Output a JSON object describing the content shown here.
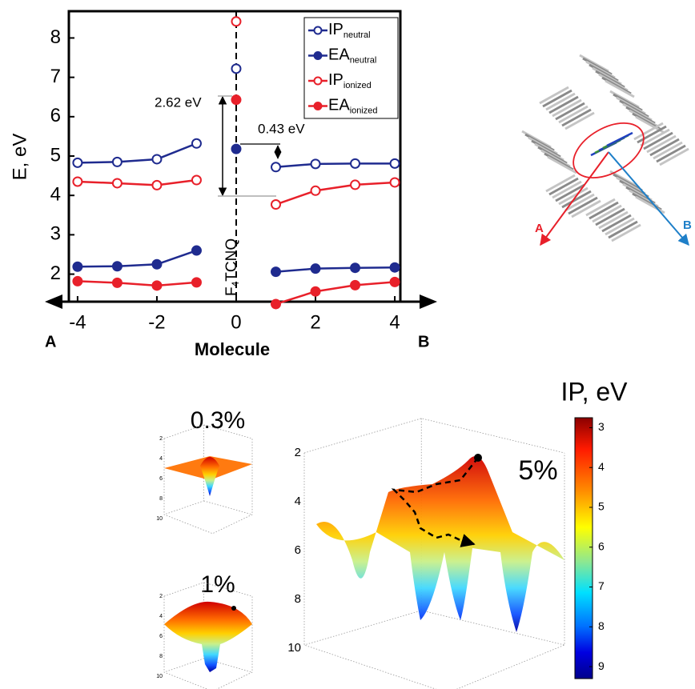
{
  "chart_data": [
    {
      "type": "line",
      "x": [
        -4,
        -3,
        -2,
        -1,
        0,
        1,
        2,
        3,
        4
      ],
      "xlim": [
        -4.22,
        4.14
      ],
      "ylim": [
        1.3,
        8.68
      ],
      "xticks": [
        -4,
        -2,
        0,
        2,
        4
      ],
      "yticks": [
        2,
        3,
        4,
        5,
        6,
        7,
        8
      ],
      "x_label": "Molecule",
      "y_label": "E, eV",
      "end_labels": [
        "A",
        "B"
      ],
      "annotations": [
        "2.62 eV",
        "0.43 eV"
      ],
      "center_label": "F",
      "center_label_subscript": "4",
      "center_label_rest": "TCNQ",
      "legend": "upper right",
      "series": [
        {
          "name": "IP",
          "subscript": "neutral",
          "color": "#1f2b8f",
          "marker": "open",
          "values": [
            4.83,
            4.85,
            4.92,
            5.32,
            7.22,
            4.72,
            4.8,
            4.81,
            4.81
          ]
        },
        {
          "name": "EA",
          "subscript": "neutral",
          "color": "#1f2b8f",
          "marker": "filled",
          "values": [
            2.19,
            2.2,
            2.25,
            2.6,
            5.18,
            2.06,
            2.14,
            2.16,
            2.17
          ]
        },
        {
          "name": "IP",
          "subscript": "ionized",
          "color": "#e8202a",
          "marker": "open",
          "values": [
            4.35,
            4.31,
            4.26,
            4.39,
            8.42,
            3.77,
            4.12,
            4.27,
            4.33
          ]
        },
        {
          "name": "EA",
          "subscript": "ionized",
          "color": "#e8202a",
          "marker": "filled",
          "values": [
            1.82,
            1.78,
            1.71,
            1.79,
            6.43,
            1.24,
            1.56,
            1.72,
            1.8
          ]
        }
      ]
    },
    {
      "type": "colorbar",
      "title": "IP, eV",
      "ylim": [
        2.75,
        9.3
      ],
      "yticks": [
        3,
        4,
        5,
        6,
        7,
        8,
        9
      ]
    }
  ],
  "diagram": {
    "arrow_labels": [
      "A",
      "B"
    ]
  },
  "surfaces": [
    {
      "label": "0.3%",
      "zticks": [
        2,
        4,
        6,
        8,
        10
      ]
    },
    {
      "label": "1%",
      "zticks": [
        2,
        4,
        6,
        8,
        10
      ]
    },
    {
      "label": "5%",
      "zticks": [
        2,
        4,
        6,
        8,
        10
      ]
    }
  ]
}
